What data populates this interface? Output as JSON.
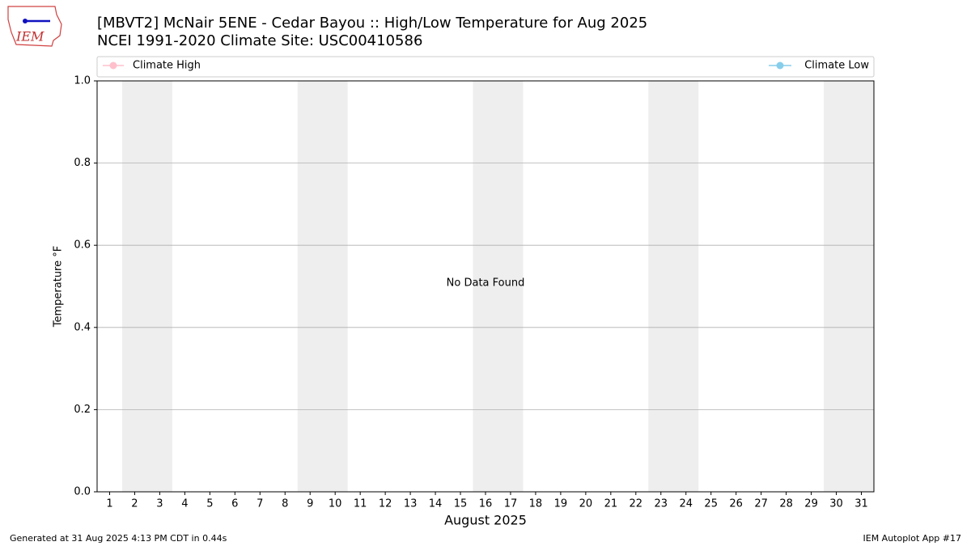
{
  "chart_data": {
    "type": "line",
    "title": [
      "[MBVT2] McNair 5ENE - Cedar Bayou :: High/Low Temperature for Aug 2025",
      "NCEI 1991-2020 Climate Site: USC00410586"
    ],
    "xlabel": "August 2025",
    "ylabel": "Temperature °F",
    "annotation": "No Data Found",
    "x": [
      1,
      2,
      3,
      4,
      5,
      6,
      7,
      8,
      9,
      10,
      11,
      12,
      13,
      14,
      15,
      16,
      17,
      18,
      19,
      20,
      21,
      22,
      23,
      24,
      25,
      26,
      27,
      28,
      29,
      30,
      31
    ],
    "series": [
      {
        "name": "Climate High",
        "color": "#ffc0cb",
        "values": [
          null,
          null,
          null,
          null,
          null,
          null,
          null,
          null,
          null,
          null,
          null,
          null,
          null,
          null,
          null,
          null,
          null,
          null,
          null,
          null,
          null,
          null,
          null,
          null,
          null,
          null,
          null,
          null,
          null,
          null,
          null
        ]
      },
      {
        "name": "Climate Low",
        "color": "#87ceeb",
        "values": [
          null,
          null,
          null,
          null,
          null,
          null,
          null,
          null,
          null,
          null,
          null,
          null,
          null,
          null,
          null,
          null,
          null,
          null,
          null,
          null,
          null,
          null,
          null,
          null,
          null,
          null,
          null,
          null,
          null,
          null,
          null
        ]
      }
    ],
    "xlim": [
      0.5,
      31.5
    ],
    "ylim": [
      0,
      1
    ],
    "yticks": [
      {
        "value": 0,
        "label": "0.0"
      },
      {
        "value": 0.2,
        "label": "0.2"
      },
      {
        "value": 0.4,
        "label": "0.4"
      },
      {
        "value": 0.6,
        "label": "0.6"
      },
      {
        "value": 0.8,
        "label": "0.8"
      },
      {
        "value": 1,
        "label": "1.0"
      }
    ],
    "grid": true,
    "shaded_spans": [
      [
        1.5,
        3.5
      ],
      [
        8.5,
        10.5
      ],
      [
        15.5,
        17.5
      ],
      [
        22.5,
        24.5
      ],
      [
        29.5,
        31.5
      ]
    ],
    "shade_color": "#eeeeee"
  },
  "logo_text": "IEM",
  "footer": {
    "left": "Generated at 31 Aug 2025 4:13 PM CDT in 0.44s",
    "right": "IEM Autoplot App #17"
  }
}
